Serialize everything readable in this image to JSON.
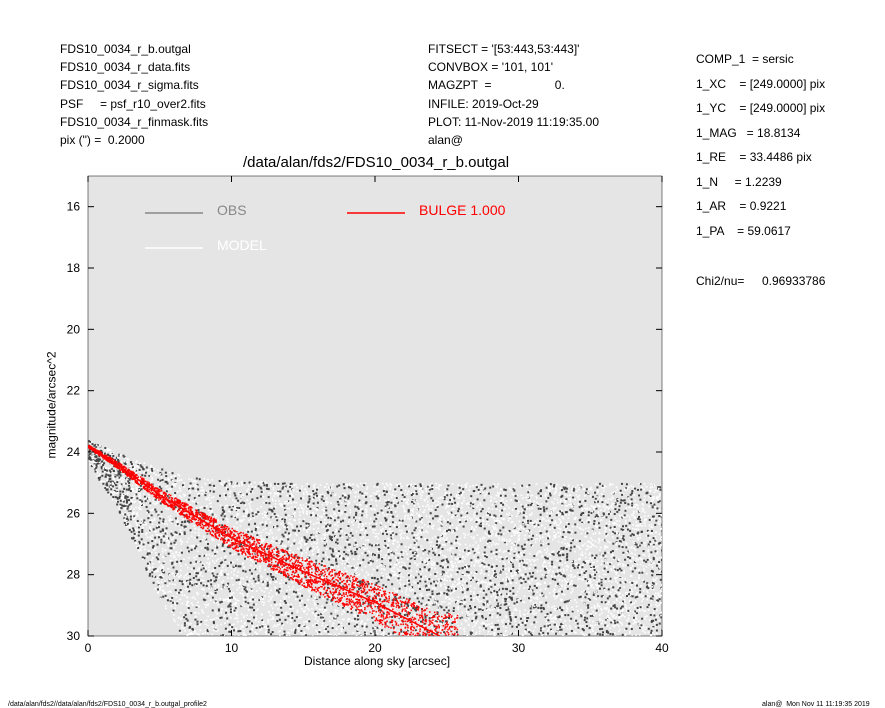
{
  "header_left": [
    "FDS10_0034_r_b.outgal",
    "FDS10_0034_r_data.fits",
    "FDS10_0034_r_sigma.fits",
    "PSF     = psf_r10_over2.fits",
    "FDS10_0034_r_finmask.fits",
    "pix (\") =  0.2000"
  ],
  "header_mid": [
    "FITSECT = '[53:443,53:443]'",
    "CONVBOX = '101, 101'",
    "MAGZPT  =                   0.",
    "INFILE: 2019-Oct-29",
    "PLOT: 11-Nov-2019 11:19:35.00",
    "alan@"
  ],
  "params": [
    "COMP_1  = sersic",
    "1_XC    = [249.0000] pix",
    "1_YC    = [249.0000] pix",
    "1_MAG   = 18.8134",
    "1_RE    = 33.4486 pix",
    "1_N     = 1.2239",
    "1_AR    = 0.9221",
    "1_PA    = 59.0617"
  ],
  "chi2": {
    "label": "Chi2/nu=",
    "value": "0.96933786"
  },
  "footer": {
    "left": "/data/alan/fds2//data/alan/fds2/FDS10_0034_r_b.outgal_profile2",
    "right": "alan@  Mon Nov 11 11:19:35 2019"
  },
  "chart_data": {
    "type": "scatter",
    "title": "/data/alan/fds2/FDS10_0034_r_b.outgal",
    "xlabel": "Distance along sky [arcsec]",
    "ylabel": "magnitude/arcsec^2",
    "xlim": [
      0,
      40
    ],
    "ylim": [
      30,
      15
    ],
    "y_reversed": true,
    "xticks": [
      0,
      10,
      20,
      30,
      40
    ],
    "yticks": [
      16,
      18,
      20,
      22,
      24,
      26,
      28,
      30
    ],
    "background": "#e5e5e5",
    "legend": [
      {
        "label": "OBS",
        "color": "#888888"
      },
      {
        "label": "MODEL",
        "color": "#ffffff"
      },
      {
        "label": "BULGE  1.000",
        "color": "#ff0000"
      }
    ],
    "obs_envelope": {
      "x": [
        0,
        1,
        2,
        3,
        5,
        7,
        10,
        15,
        20,
        30,
        40
      ],
      "mag_bright": [
        23.6,
        23.8,
        24.0,
        24.2,
        24.5,
        24.8,
        24.9,
        25.0,
        25.0,
        25.0,
        25.0
      ],
      "mag_faint": [
        24.0,
        24.8,
        25.5,
        26.5,
        28.5,
        30,
        30,
        30,
        30,
        30,
        30
      ]
    },
    "bulge": {
      "x": [
        0,
        2,
        5,
        10,
        15,
        20,
        24.5
      ],
      "mag": [
        23.8,
        24.4,
        25.4,
        26.8,
        27.9,
        28.9,
        30.0
      ]
    }
  }
}
